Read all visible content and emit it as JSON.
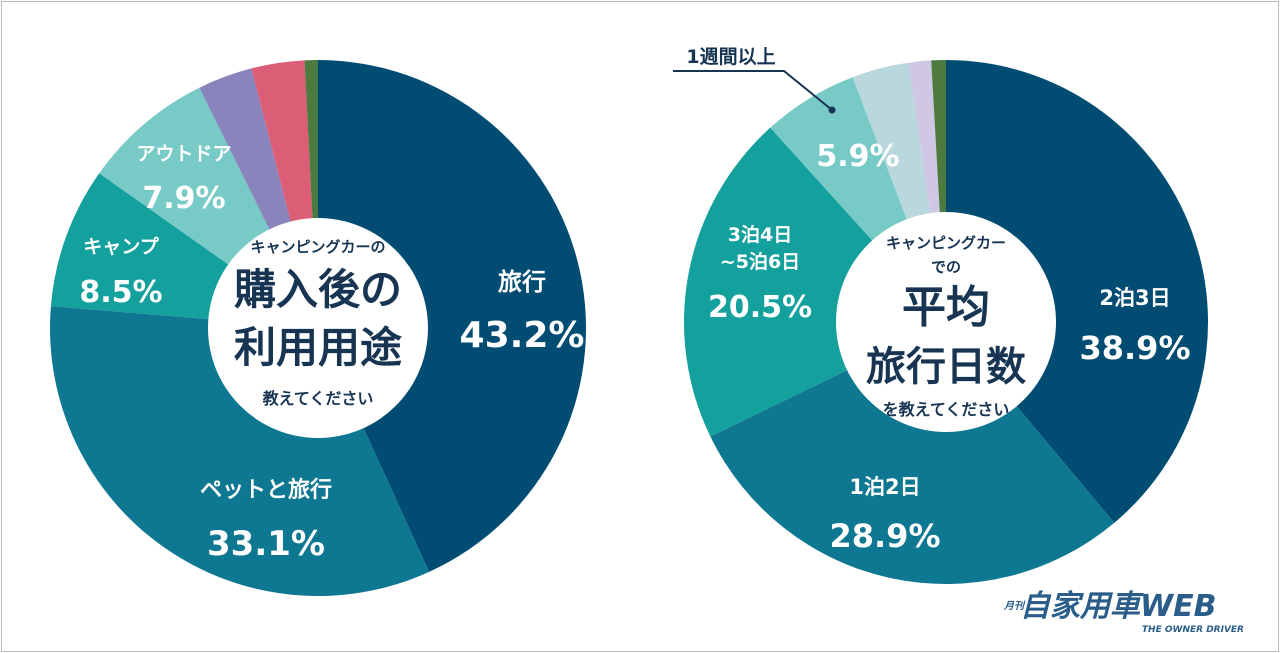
{
  "chart_data": [
    {
      "type": "pie",
      "center_label": {
        "line1": "キャンピングカーの",
        "line2": "購入後の",
        "line3": "利用用途",
        "line4": "教えてください"
      },
      "slices": [
        {
          "name": "旅行",
          "value": 43.2,
          "label": "43.2%",
          "color": "#014c72"
        },
        {
          "name": "ペットと旅行",
          "value": 33.1,
          "label": "33.1%",
          "color": "#0e7791"
        },
        {
          "name": "キャンプ",
          "value": 8.5,
          "label": "8.5%",
          "color": "#14a19e"
        },
        {
          "name": "アウトドア",
          "value": 7.9,
          "label": "7.9%",
          "color": "#78cac7"
        },
        {
          "name": "",
          "value": 3.3,
          "label": "",
          "color": "#8a84bd"
        },
        {
          "name": "",
          "value": 3.2,
          "label": "",
          "color": "#db5d76"
        },
        {
          "name": "",
          "value": 0.8,
          "label": "",
          "color": "#4d7a3f"
        }
      ]
    },
    {
      "type": "pie",
      "center_label": {
        "line1": "キャンピングカー",
        "line2": "での",
        "line3": "平均",
        "line4": "旅行日数",
        "line5": "を教えてください"
      },
      "slices": [
        {
          "name": "2泊3日",
          "value": 38.9,
          "label": "38.9%",
          "color": "#014c72"
        },
        {
          "name": "1泊2日",
          "value": 28.9,
          "label": "28.9%",
          "color": "#0e7791"
        },
        {
          "name": "3泊4日~5泊6日",
          "name_line1": "3泊4日",
          "name_line2": "~5泊6日",
          "value": 20.5,
          "label": "20.5%",
          "color": "#14a19e"
        },
        {
          "name": "1週間以上",
          "value": 5.9,
          "label": "5.9%",
          "color": "#78cac7"
        },
        {
          "name": "",
          "value": 3.5,
          "label": "",
          "color": "#b9d8dd"
        },
        {
          "name": "",
          "value": 1.4,
          "label": "",
          "color": "#cfc7e4"
        },
        {
          "name": "",
          "value": 0.9,
          "label": "",
          "color": "#4d7a3f"
        }
      ]
    }
  ],
  "logo": {
    "small": "月刊",
    "main": "自家用車WEB",
    "sub": "THE OWNER DRIVER"
  }
}
